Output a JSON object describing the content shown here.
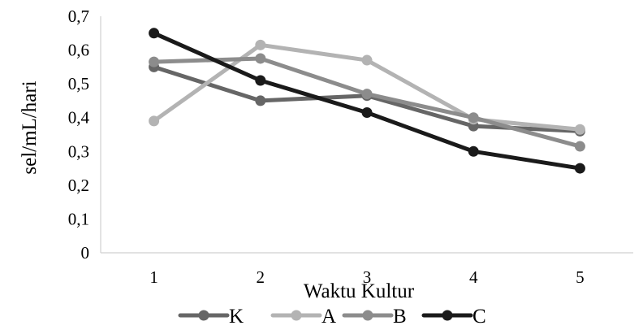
{
  "chart_data": {
    "type": "line",
    "xlabel": "Waktu Kultur",
    "ylabel": "sel/mL/hari",
    "x": [
      1,
      2,
      3,
      4,
      5
    ],
    "x_tick_labels": [
      "1",
      "2",
      "3",
      "4",
      "5"
    ],
    "ylim": [
      0,
      0.7
    ],
    "y_tick_labels": [
      "0",
      "0,1",
      "0,2",
      "0,3",
      "0,4",
      "0,5",
      "0,6",
      "0,7"
    ],
    "grid": false,
    "legend_position": "bottom",
    "series": [
      {
        "name": "K",
        "color": "#666666",
        "values": [
          0.55,
          0.45,
          0.465,
          0.375,
          0.36
        ]
      },
      {
        "name": "A",
        "color": "#b3b3b3",
        "values": [
          0.39,
          0.615,
          0.57,
          0.395,
          0.365
        ]
      },
      {
        "name": "B",
        "color": "#8c8c8c",
        "values": [
          0.565,
          0.575,
          0.47,
          0.4,
          0.315
        ]
      },
      {
        "name": "C",
        "color": "#1a1a1a",
        "values": [
          0.65,
          0.51,
          0.415,
          0.3,
          0.25
        ]
      }
    ]
  }
}
